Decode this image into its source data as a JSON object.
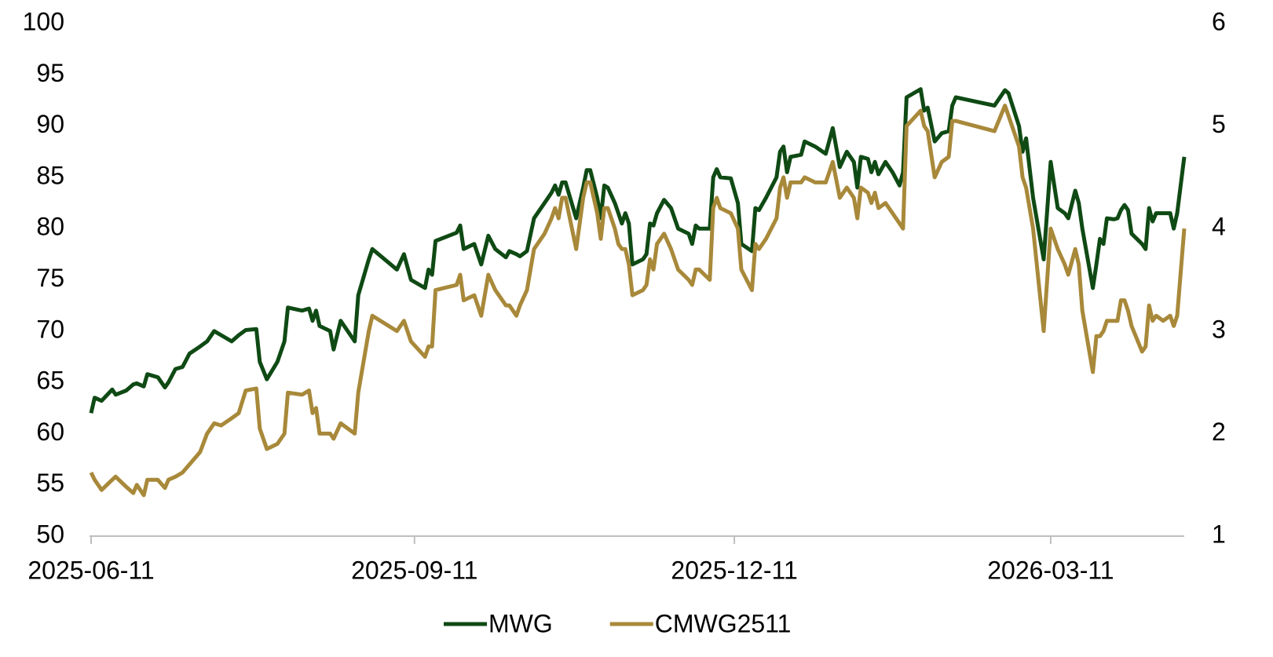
{
  "chart_data": {
    "type": "line",
    "x": [
      "2025-06-11",
      "2025-06-12",
      "2025-06-14",
      "2025-06-17",
      "2025-06-18",
      "2025-06-21",
      "2025-06-23",
      "2025-06-24",
      "2025-06-26",
      "2025-06-27",
      "2025-06-30",
      "2025-07-02",
      "2025-07-03",
      "2025-07-05",
      "2025-07-07",
      "2025-07-09",
      "2025-07-12",
      "2025-07-14",
      "2025-07-16",
      "2025-07-18",
      "2025-07-21",
      "2025-07-23",
      "2025-07-25",
      "2025-07-28",
      "2025-07-29",
      "2025-07-31",
      "2025-08-03",
      "2025-08-05",
      "2025-08-06",
      "2025-08-10",
      "2025-08-12",
      "2025-08-13",
      "2025-08-14",
      "2025-08-15",
      "2025-08-18",
      "2025-08-19",
      "2025-08-21",
      "2025-08-25",
      "2025-08-26",
      "2025-08-29",
      "2025-08-30",
      "2025-09-06",
      "2025-09-08",
      "2025-09-10",
      "2025-09-14",
      "2025-09-15",
      "2025-09-16",
      "2025-09-17",
      "2025-09-23",
      "2025-09-24",
      "2025-09-25",
      "2025-09-28",
      "2025-09-30",
      "2025-10-02",
      "2025-10-04",
      "2025-10-07",
      "2025-10-08",
      "2025-10-10",
      "2025-10-11",
      "2025-10-13",
      "2025-10-15",
      "2025-10-18",
      "2025-10-20",
      "2025-10-21",
      "2025-10-22",
      "2025-10-23",
      "2025-10-24",
      "2025-10-27",
      "2025-10-29",
      "2025-10-30",
      "2025-10-31",
      "2025-11-02",
      "2025-11-03",
      "2025-11-04",
      "2025-11-05",
      "2025-11-07",
      "2025-11-08",
      "2025-11-09",
      "2025-11-10",
      "2025-11-11",
      "2025-11-12",
      "2025-11-15",
      "2025-11-16",
      "2025-11-17",
      "2025-11-18",
      "2025-11-19",
      "2025-11-21",
      "2025-11-23",
      "2025-11-25",
      "2025-11-28",
      "2025-11-29",
      "2025-11-30",
      "2025-12-01",
      "2025-12-04",
      "2025-12-05",
      "2025-12-06",
      "2025-12-07",
      "2025-12-10",
      "2025-12-12",
      "2025-12-13",
      "2025-12-16",
      "2025-12-17",
      "2025-12-18",
      "2025-12-20",
      "2025-12-23",
      "2025-12-24",
      "2025-12-25",
      "2025-12-26",
      "2025-12-27",
      "2025-12-30",
      "2025-12-31",
      "2026-01-03",
      "2026-01-06",
      "2026-01-08",
      "2026-01-10",
      "2026-01-12",
      "2026-01-14",
      "2026-01-15",
      "2026-01-16",
      "2026-01-18",
      "2026-01-19",
      "2026-01-20",
      "2026-01-21",
      "2026-01-23",
      "2026-01-25",
      "2026-01-27",
      "2026-01-28",
      "2026-01-29",
      "2026-02-02",
      "2026-02-03",
      "2026-02-04",
      "2026-02-06",
      "2026-02-08",
      "2026-02-10",
      "2026-02-11",
      "2026-02-12",
      "2026-02-23",
      "2026-02-26",
      "2026-02-27",
      "2026-03-02",
      "2026-03-03",
      "2026-03-04",
      "2026-03-06",
      "2026-03-09",
      "2026-03-11",
      "2026-03-13",
      "2026-03-15",
      "2026-03-16",
      "2026-03-18",
      "2026-03-19",
      "2026-03-20",
      "2026-03-23",
      "2026-03-24",
      "2026-03-25",
      "2026-03-26",
      "2026-03-27",
      "2026-03-29",
      "2026-03-30",
      "2026-03-31",
      "2026-04-01",
      "2026-04-02",
      "2026-04-03",
      "2026-04-06",
      "2026-04-07",
      "2026-04-08",
      "2026-04-09",
      "2026-04-10",
      "2026-04-12",
      "2026-04-14",
      "2026-04-15",
      "2026-04-16",
      "2026-04-18"
    ],
    "series": [
      {
        "name": "MWG",
        "color": "#0f4a14",
        "axis": "y",
        "values": [
          62.0,
          63.5,
          63.2,
          64.3,
          63.8,
          64.2,
          64.8,
          64.9,
          64.6,
          65.8,
          65.5,
          64.5,
          65.0,
          66.3,
          66.5,
          67.8,
          68.5,
          69.0,
          70.0,
          69.6,
          69.0,
          69.6,
          70.1,
          70.2,
          67.0,
          65.3,
          67.0,
          69.0,
          72.3,
          72.0,
          72.2,
          71.0,
          72.0,
          70.5,
          70.0,
          68.2,
          71.0,
          69.0,
          73.5,
          77.0,
          78.0,
          76.0,
          77.5,
          75.0,
          74.2,
          76.0,
          75.5,
          78.8,
          79.6,
          80.3,
          78.0,
          78.5,
          76.5,
          79.3,
          78.0,
          77.2,
          77.8,
          77.5,
          77.3,
          77.8,
          81.0,
          82.5,
          83.5,
          84.2,
          83.3,
          84.5,
          84.5,
          81.0,
          84.0,
          85.7,
          85.7,
          83.0,
          81.0,
          84.2,
          84.0,
          82.5,
          81.5,
          80.5,
          81.5,
          80.5,
          76.5,
          77.0,
          77.5,
          80.5,
          80.3,
          81.5,
          82.8,
          82.0,
          80.0,
          79.5,
          78.5,
          80.3,
          80.0,
          80.0,
          85.0,
          85.8,
          85.0,
          84.9,
          82.5,
          78.5,
          77.8,
          82.0,
          81.8,
          83.0,
          85.0,
          87.5,
          88.0,
          85.5,
          87.0,
          87.2,
          88.5,
          88.0,
          87.3,
          89.8,
          86.0,
          87.5,
          86.5,
          84.0,
          87.0,
          86.8,
          85.5,
          86.5,
          85.3,
          86.5,
          85.5,
          84.2,
          85.5,
          92.8,
          93.6,
          91.5,
          91.8,
          88.5,
          89.3,
          89.5,
          92.0,
          92.8,
          92.0,
          93.5,
          93.2,
          90.0,
          87.5,
          88.8,
          83.0,
          77.0,
          86.5,
          82.0,
          81.5,
          81.0,
          83.7,
          82.5,
          80.0,
          74.2,
          76.5,
          79.0,
          78.5,
          81.0,
          80.9,
          81.0,
          81.8,
          82.3,
          81.8,
          79.5,
          78.5,
          78.0,
          82.0,
          80.7,
          81.5,
          81.5,
          81.5,
          80.0,
          81.5,
          87.0
        ]
      },
      {
        "name": "CMWG2511",
        "color": "#a8893a",
        "axis": "y2",
        "values": [
          1.62,
          1.55,
          1.45,
          1.55,
          1.58,
          1.48,
          1.42,
          1.5,
          1.4,
          1.55,
          1.55,
          1.47,
          1.55,
          1.58,
          1.62,
          1.7,
          1.82,
          2.0,
          2.1,
          2.08,
          2.15,
          2.2,
          2.42,
          2.44,
          2.05,
          1.85,
          1.9,
          2.0,
          2.4,
          2.38,
          2.42,
          2.2,
          2.25,
          2.0,
          2.0,
          1.95,
          2.1,
          2.0,
          2.4,
          3.0,
          3.15,
          3.0,
          3.1,
          2.9,
          2.75,
          2.85,
          2.85,
          3.4,
          3.45,
          3.55,
          3.3,
          3.35,
          3.15,
          3.55,
          3.4,
          3.25,
          3.25,
          3.15,
          3.25,
          3.4,
          3.8,
          3.95,
          4.1,
          4.2,
          4.1,
          4.3,
          4.3,
          3.8,
          4.3,
          4.45,
          4.45,
          4.15,
          3.9,
          4.2,
          4.2,
          4.0,
          3.85,
          3.8,
          3.8,
          3.65,
          3.35,
          3.4,
          3.45,
          3.7,
          3.6,
          3.85,
          3.95,
          3.8,
          3.6,
          3.5,
          3.45,
          3.6,
          3.6,
          3.5,
          4.2,
          4.3,
          4.2,
          4.15,
          4.0,
          3.6,
          3.4,
          3.85,
          3.8,
          3.9,
          4.1,
          4.4,
          4.5,
          4.3,
          4.45,
          4.45,
          4.5,
          4.45,
          4.45,
          4.65,
          4.3,
          4.4,
          4.3,
          4.1,
          4.4,
          4.35,
          4.25,
          4.35,
          4.2,
          4.25,
          4.15,
          4.05,
          4.0,
          5.0,
          5.15,
          5.0,
          4.95,
          4.5,
          4.65,
          4.7,
          5.05,
          5.05,
          4.95,
          5.2,
          5.1,
          4.8,
          4.5,
          4.4,
          4.0,
          3.0,
          4.0,
          3.8,
          3.65,
          3.55,
          3.8,
          3.65,
          3.2,
          2.6,
          2.95,
          2.95,
          3.0,
          3.1,
          3.1,
          3.1,
          3.3,
          3.3,
          3.2,
          3.05,
          2.8,
          2.85,
          3.25,
          3.1,
          3.15,
          3.1,
          3.15,
          3.05,
          3.15,
          4.0
        ]
      }
    ],
    "xlim": [
      "2025-06-11",
      "2026-04-18"
    ],
    "xticks": [
      "2025-06-11",
      "2025-09-11",
      "2025-12-11",
      "2026-03-11"
    ],
    "ylim": [
      50,
      100
    ],
    "yticks": [
      50,
      55,
      60,
      65,
      70,
      75,
      80,
      85,
      90,
      95,
      100
    ],
    "y2lim": [
      1,
      6
    ],
    "y2ticks": [
      1,
      2,
      3,
      4,
      5,
      6
    ],
    "grid": false,
    "legend": "bottom"
  }
}
